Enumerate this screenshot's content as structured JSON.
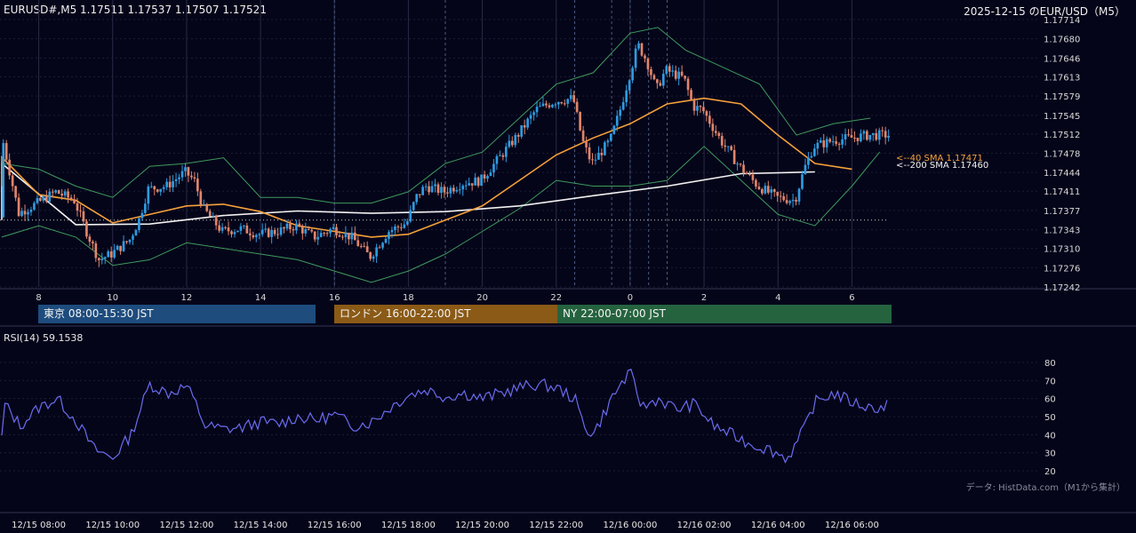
{
  "header": {
    "symbol_line": "EURUSD#,M5 1.17511 1.17537 1.17507 1.17521",
    "right_title": "2025-12-15 のEUR/USD（M5）"
  },
  "colors": {
    "background": "#05051a",
    "bull": "#2f9be0",
    "bear": "#e0856a",
    "sma40": "#f5a13a",
    "sma200": "#f2f2f2",
    "bollinger": "#3f9a5c",
    "rsi": "#6b6cf0",
    "tokyo": "#1e4c7d",
    "london": "#8a5a16",
    "ny": "#25633f"
  },
  "price_axis": {
    "ticks": [
      "1.17714",
      "1.17680",
      "1.17646",
      "1.17613",
      "1.17579",
      "1.17545",
      "1.17512",
      "1.17478",
      "1.17444",
      "1.17411",
      "1.17377",
      "1.17343",
      "1.17310",
      "1.17276",
      "1.17242"
    ]
  },
  "hour_axis": {
    "ticks": [
      "8",
      "10",
      "12",
      "14",
      "16",
      "18",
      "20",
      "22",
      "0",
      "2",
      "4",
      "6"
    ]
  },
  "sma_labels": {
    "sma40": "<--40 SMA 1.17471",
    "sma200": "<--200 SMA 1.17460"
  },
  "sessions": [
    {
      "label": "東京 08:00-15:30 JST"
    },
    {
      "label": "ロンドン 16:00-22:00 JST"
    },
    {
      "label": "NY 22:00-07:00 JST"
    }
  ],
  "rsi": {
    "label": "RSI(14) 59.1538",
    "ticks": [
      "80",
      "70",
      "60",
      "50",
      "40",
      "30",
      "20"
    ]
  },
  "source_note": "データ: HistData.com（M1から集計）",
  "time_axis": {
    "ticks": [
      "12/15 08:00",
      "12/15 10:00",
      "12/15 12:00",
      "12/15 14:00",
      "12/15 16:00",
      "12/15 18:00",
      "12/15 20:00",
      "12/15 22:00",
      "12/16 00:00",
      "12/16 02:00",
      "12/16 04:00",
      "12/16 06:00"
    ]
  },
  "chart_data": [
    {
      "type": "candlestick",
      "title": "EURUSD#,M5",
      "x_range": [
        "2025-12-15 07:00",
        "2025-12-16 07:00"
      ],
      "ylim": [
        1.17242,
        1.17714
      ],
      "price_path": [
        {
          "t": "07:00",
          "v": 1.17365
        },
        {
          "t": "07:30",
          "v": 1.17372
        },
        {
          "t": "08:00",
          "v": 1.1739
        },
        {
          "t": "08:30",
          "v": 1.1741
        },
        {
          "t": "09:00",
          "v": 1.17395
        },
        {
          "t": "09:20",
          "v": 1.1734
        },
        {
          "t": "09:40",
          "v": 1.1729
        },
        {
          "t": "10:00",
          "v": 1.173
        },
        {
          "t": "10:30",
          "v": 1.17325
        },
        {
          "t": "10:45",
          "v": 1.1736
        },
        {
          "t": "11:00",
          "v": 1.17415
        },
        {
          "t": "11:30",
          "v": 1.1742
        },
        {
          "t": "12:00",
          "v": 1.17445
        },
        {
          "t": "12:15",
          "v": 1.1743
        },
        {
          "t": "12:30",
          "v": 1.1738
        },
        {
          "t": "13:00",
          "v": 1.1734
        },
        {
          "t": "13:30",
          "v": 1.17345
        },
        {
          "t": "14:00",
          "v": 1.17335
        },
        {
          "t": "14:30",
          "v": 1.1734
        },
        {
          "t": "15:00",
          "v": 1.1735
        },
        {
          "t": "15:30",
          "v": 1.1733
        },
        {
          "t": "16:00",
          "v": 1.17345
        },
        {
          "t": "16:30",
          "v": 1.1733
        },
        {
          "t": "17:00",
          "v": 1.17295
        },
        {
          "t": "17:30",
          "v": 1.1734
        },
        {
          "t": "18:00",
          "v": 1.17355
        },
        {
          "t": "18:15",
          "v": 1.174
        },
        {
          "t": "18:30",
          "v": 1.1742
        },
        {
          "t": "19:00",
          "v": 1.1741
        },
        {
          "t": "19:30",
          "v": 1.17425
        },
        {
          "t": "20:00",
          "v": 1.1743
        },
        {
          "t": "20:30",
          "v": 1.1747
        },
        {
          "t": "21:00",
          "v": 1.1751
        },
        {
          "t": "21:30",
          "v": 1.17555
        },
        {
          "t": "22:00",
          "v": 1.1757
        },
        {
          "t": "22:30",
          "v": 1.17575
        },
        {
          "t": "22:45",
          "v": 1.175
        },
        {
          "t": "23:00",
          "v": 1.1746
        },
        {
          "t": "23:30",
          "v": 1.175
        },
        {
          "t": "23:45",
          "v": 1.1755
        },
        {
          "t": "00:00",
          "v": 1.1761
        },
        {
          "t": "00:15",
          "v": 1.1767
        },
        {
          "t": "00:30",
          "v": 1.1764
        },
        {
          "t": "00:45",
          "v": 1.1759
        },
        {
          "t": "01:00",
          "v": 1.17625
        },
        {
          "t": "01:30",
          "v": 1.1761
        },
        {
          "t": "01:45",
          "v": 1.1756
        },
        {
          "t": "02:00",
          "v": 1.17555
        },
        {
          "t": "02:30",
          "v": 1.175
        },
        {
          "t": "03:00",
          "v": 1.17455
        },
        {
          "t": "03:30",
          "v": 1.1742
        },
        {
          "t": "04:00",
          "v": 1.174
        },
        {
          "t": "04:30",
          "v": 1.17395
        },
        {
          "t": "04:45",
          "v": 1.1745
        },
        {
          "t": "05:00",
          "v": 1.1749
        },
        {
          "t": "05:30",
          "v": 1.175
        },
        {
          "t": "06:00",
          "v": 1.17505
        },
        {
          "t": "06:30",
          "v": 1.1751
        },
        {
          "t": "07:00",
          "v": 1.17521
        }
      ],
      "sma40": [
        {
          "t": "07:00",
          "v": 1.1742
        },
        {
          "t": "08:00",
          "v": 1.17405
        },
        {
          "t": "09:00",
          "v": 1.17395
        },
        {
          "t": "10:00",
          "v": 1.17355
        },
        {
          "t": "11:00",
          "v": 1.1737
        },
        {
          "t": "12:00",
          "v": 1.17385
        },
        {
          "t": "13:00",
          "v": 1.17388
        },
        {
          "t": "14:00",
          "v": 1.17375
        },
        {
          "t": "15:00",
          "v": 1.1735
        },
        {
          "t": "16:00",
          "v": 1.1734
        },
        {
          "t": "17:00",
          "v": 1.1733
        },
        {
          "t": "18:00",
          "v": 1.17335
        },
        {
          "t": "19:00",
          "v": 1.1736
        },
        {
          "t": "20:00",
          "v": 1.17385
        },
        {
          "t": "21:00",
          "v": 1.1743
        },
        {
          "t": "22:00",
          "v": 1.17475
        },
        {
          "t": "23:00",
          "v": 1.17505
        },
        {
          "t": "00:00",
          "v": 1.1753
        },
        {
          "t": "01:00",
          "v": 1.17565
        },
        {
          "t": "02:00",
          "v": 1.17575
        },
        {
          "t": "03:00",
          "v": 1.17565
        },
        {
          "t": "04:00",
          "v": 1.1751
        },
        {
          "t": "05:00",
          "v": 1.1746
        },
        {
          "t": "06:00",
          "v": 1.1745
        },
        {
          "t": "07:00",
          "v": 1.17471
        }
      ],
      "sma200": [
        {
          "t": "07:00",
          "v": 1.1736
        },
        {
          "t": "09:00",
          "v": 1.17352
        },
        {
          "t": "11:00",
          "v": 1.17353
        },
        {
          "t": "13:00",
          "v": 1.17368
        },
        {
          "t": "15:00",
          "v": 1.17376
        },
        {
          "t": "17:00",
          "v": 1.17372
        },
        {
          "t": "19:00",
          "v": 1.17375
        },
        {
          "t": "21:00",
          "v": 1.17385
        },
        {
          "t": "23:00",
          "v": 1.17403
        },
        {
          "t": "01:00",
          "v": 1.1742
        },
        {
          "t": "03:00",
          "v": 1.17442
        },
        {
          "t": "05:00",
          "v": 1.17445
        },
        {
          "t": "07:00",
          "v": 1.1746
        }
      ],
      "bollinger_upper": [
        {
          "t": "07:00",
          "v": 1.1746
        },
        {
          "t": "08:00",
          "v": 1.1745
        },
        {
          "t": "09:00",
          "v": 1.1742
        },
        {
          "t": "10:00",
          "v": 1.174
        },
        {
          "t": "11:00",
          "v": 1.17455
        },
        {
          "t": "12:00",
          "v": 1.1746
        },
        {
          "t": "13:00",
          "v": 1.1747
        },
        {
          "t": "14:00",
          "v": 1.174
        },
        {
          "t": "15:00",
          "v": 1.174
        },
        {
          "t": "16:00",
          "v": 1.1739
        },
        {
          "t": "17:00",
          "v": 1.1739
        },
        {
          "t": "18:00",
          "v": 1.1741
        },
        {
          "t": "19:00",
          "v": 1.1746
        },
        {
          "t": "20:00",
          "v": 1.1748
        },
        {
          "t": "21:00",
          "v": 1.1754
        },
        {
          "t": "22:00",
          "v": 1.176
        },
        {
          "t": "23:00",
          "v": 1.1762
        },
        {
          "t": "00:00",
          "v": 1.1769
        },
        {
          "t": "00:45",
          "v": 1.177
        },
        {
          "t": "01:30",
          "v": 1.1766
        },
        {
          "t": "02:30",
          "v": 1.1763
        },
        {
          "t": "03:30",
          "v": 1.176
        },
        {
          "t": "04:30",
          "v": 1.1751
        },
        {
          "t": "05:30",
          "v": 1.1753
        },
        {
          "t": "06:30",
          "v": 1.1754
        }
      ],
      "bollinger_lower": [
        {
          "t": "07:00",
          "v": 1.1733
        },
        {
          "t": "08:00",
          "v": 1.1735
        },
        {
          "t": "09:00",
          "v": 1.1733
        },
        {
          "t": "10:00",
          "v": 1.1728
        },
        {
          "t": "11:00",
          "v": 1.1729
        },
        {
          "t": "12:00",
          "v": 1.1732
        },
        {
          "t": "13:00",
          "v": 1.1731
        },
        {
          "t": "14:00",
          "v": 1.173
        },
        {
          "t": "15:00",
          "v": 1.1729
        },
        {
          "t": "16:00",
          "v": 1.1727
        },
        {
          "t": "17:00",
          "v": 1.1725
        },
        {
          "t": "18:00",
          "v": 1.1727
        },
        {
          "t": "19:00",
          "v": 1.173
        },
        {
          "t": "20:00",
          "v": 1.1734
        },
        {
          "t": "21:00",
          "v": 1.1738
        },
        {
          "t": "22:00",
          "v": 1.1743
        },
        {
          "t": "23:00",
          "v": 1.1742
        },
        {
          "t": "00:00",
          "v": 1.1742
        },
        {
          "t": "01:00",
          "v": 1.1743
        },
        {
          "t": "02:00",
          "v": 1.1749
        },
        {
          "t": "03:00",
          "v": 1.1743
        },
        {
          "t": "04:00",
          "v": 1.1737
        },
        {
          "t": "05:00",
          "v": 1.1735
        },
        {
          "t": "06:00",
          "v": 1.1742
        },
        {
          "t": "06:45",
          "v": 1.1748
        }
      ]
    },
    {
      "type": "line",
      "title": "RSI(14)",
      "ylim": [
        20,
        80
      ],
      "series": [
        {
          "name": "RSI(14)",
          "points": [
            {
              "t": "07:00",
              "v": 38
            },
            {
              "t": "07:30",
              "v": 45
            },
            {
              "t": "08:00",
              "v": 55
            },
            {
              "t": "08:30",
              "v": 60
            },
            {
              "t": "09:00",
              "v": 48
            },
            {
              "t": "09:30",
              "v": 32
            },
            {
              "t": "10:00",
              "v": 27
            },
            {
              "t": "10:30",
              "v": 40
            },
            {
              "t": "11:00",
              "v": 68
            },
            {
              "t": "11:30",
              "v": 63
            },
            {
              "t": "12:00",
              "v": 67
            },
            {
              "t": "12:15",
              "v": 57
            },
            {
              "t": "12:30",
              "v": 45
            },
            {
              "t": "13:00",
              "v": 43
            },
            {
              "t": "13:30",
              "v": 44
            },
            {
              "t": "14:00",
              "v": 47
            },
            {
              "t": "14:30",
              "v": 46
            },
            {
              "t": "15:00",
              "v": 50
            },
            {
              "t": "15:30",
              "v": 48
            },
            {
              "t": "16:00",
              "v": 51
            },
            {
              "t": "16:30",
              "v": 45
            },
            {
              "t": "17:00",
              "v": 47
            },
            {
              "t": "17:30",
              "v": 55
            },
            {
              "t": "18:00",
              "v": 62
            },
            {
              "t": "18:30",
              "v": 65
            },
            {
              "t": "19:00",
              "v": 61
            },
            {
              "t": "19:30",
              "v": 63
            },
            {
              "t": "20:00",
              "v": 60
            },
            {
              "t": "20:30",
              "v": 63
            },
            {
              "t": "21:00",
              "v": 66
            },
            {
              "t": "21:30",
              "v": 68
            },
            {
              "t": "22:00",
              "v": 66
            },
            {
              "t": "22:30",
              "v": 60
            },
            {
              "t": "22:45",
              "v": 45
            },
            {
              "t": "23:00",
              "v": 40
            },
            {
              "t": "23:30",
              "v": 60
            },
            {
              "t": "23:45",
              "v": 68
            },
            {
              "t": "00:00",
              "v": 74
            },
            {
              "t": "00:20",
              "v": 55
            },
            {
              "t": "00:45",
              "v": 60
            },
            {
              "t": "01:15",
              "v": 54
            },
            {
              "t": "01:45",
              "v": 57
            },
            {
              "t": "02:15",
              "v": 45
            },
            {
              "t": "02:45",
              "v": 40
            },
            {
              "t": "03:15",
              "v": 35
            },
            {
              "t": "03:45",
              "v": 32
            },
            {
              "t": "04:15",
              "v": 27
            },
            {
              "t": "04:30",
              "v": 35
            },
            {
              "t": "04:45",
              "v": 45
            },
            {
              "t": "05:00",
              "v": 58
            },
            {
              "t": "05:30",
              "v": 63
            },
            {
              "t": "06:00",
              "v": 58
            },
            {
              "t": "06:30",
              "v": 55
            },
            {
              "t": "07:00",
              "v": 59.1538
            }
          ]
        }
      ]
    }
  ]
}
